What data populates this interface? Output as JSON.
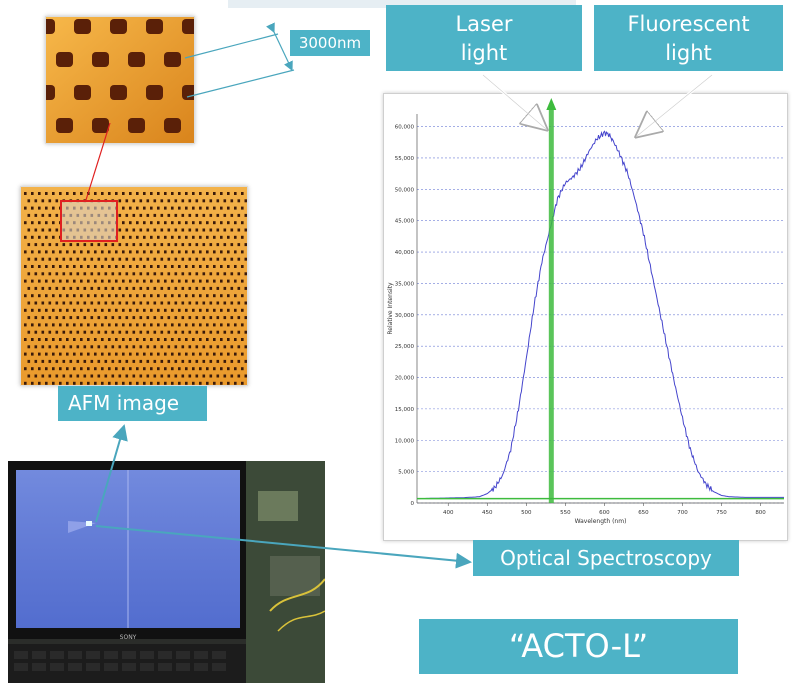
{
  "labels": {
    "laser_line1": "Laser",
    "laser_line2": "light",
    "fluorescent_line1": "Fluorescent",
    "fluorescent_line2": "light",
    "scale": "3000nm",
    "afm": "AFM image",
    "optical": "Optical Spectroscopy",
    "device_name": "“ACTO-L”",
    "laptop_brand": "SONY"
  },
  "colors": {
    "teal": "#4db3c7",
    "spectrum_line": "#4444cc",
    "laser_line": "#3dbb3d",
    "grid": "#6f7fd6",
    "afm_orange": "#f0a030",
    "afm_hole": "#5a2008",
    "connector": "#4aa6bd",
    "highlight_box": "#e02020"
  },
  "chart_data": {
    "type": "line",
    "xlabel": "Wavelength (nm)",
    "ylabel": "Relative Intensity",
    "xlim": [
      360,
      830
    ],
    "ylim": [
      0,
      62000
    ],
    "x_ticks": [
      400,
      450,
      500,
      550,
      600,
      650,
      700,
      750,
      800
    ],
    "y_ticks": [
      0,
      5000,
      10000,
      15000,
      20000,
      25000,
      30000,
      35000,
      40000,
      45000,
      50000,
      55000,
      60000
    ],
    "y_tick_labels": [
      "0",
      "5,000",
      "10,000",
      "15,000",
      "20,000",
      "25,000",
      "30,000",
      "35,000",
      "40,000",
      "45,000",
      "50,000",
      "55,000",
      "60,000"
    ],
    "grid": true,
    "series": [
      {
        "values_x": [
          360,
          380,
          400,
          420,
          440,
          450,
          460,
          470,
          480,
          490,
          500,
          510,
          520,
          530,
          540,
          550,
          560,
          570,
          580,
          590,
          600,
          605,
          610,
          620,
          630,
          640,
          650,
          660,
          670,
          680,
          690,
          700,
          710,
          720,
          730,
          740,
          750,
          760,
          780,
          800,
          830
        ],
        "values_y": [
          700,
          750,
          800,
          850,
          1000,
          1500,
          2500,
          4500,
          8500,
          15000,
          23000,
          31500,
          38500,
          43500,
          48500,
          51000,
          52000,
          53500,
          56000,
          58000,
          59000,
          58800,
          58000,
          55500,
          52500,
          48000,
          43000,
          37000,
          31000,
          25000,
          19000,
          13500,
          8500,
          5000,
          3000,
          1800,
          1200,
          1000,
          900,
          900,
          900
        ]
      },
      {
        "values_x": [
          360,
          830
        ],
        "values_y": [
          700,
          700
        ]
      }
    ],
    "laser_wavelength": 532
  }
}
